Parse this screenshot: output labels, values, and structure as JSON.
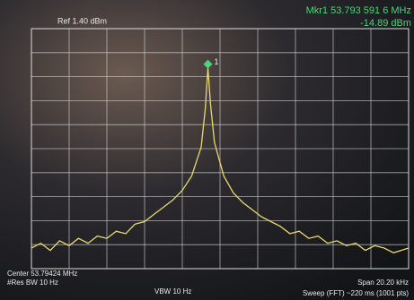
{
  "chart_data": {
    "type": "line",
    "marker_readout": "Mkr1 53.793 591 6 MHz",
    "marker_level": "-14.89 dBm",
    "marker_label": "1",
    "reference": "Ref 1.40 dBm",
    "center": "Center 53.79424 MHz",
    "res_bw": "#Res BW 10 Hz",
    "vbw": "VBW 10 Hz",
    "span": "Span 20.20 kHz",
    "sweep": "Sweep (FFT) ~220 ms (1001 pts)",
    "xlim": [
      53.78414,
      53.80434
    ],
    "ylim": [
      -98.6,
      1.4
    ],
    "grid": true,
    "series": [
      {
        "color": "#e8d870",
        "x": [
          53.78414,
          53.78464,
          53.78515,
          53.78565,
          53.78616,
          53.78666,
          53.78717,
          53.78767,
          53.78818,
          53.78868,
          53.78919,
          53.78969,
          53.7902,
          53.7907,
          53.79121,
          53.79171,
          53.79222,
          53.79272,
          53.79323,
          53.79345,
          53.79359,
          53.79373,
          53.79394,
          53.79444,
          53.79495,
          53.79545,
          53.79596,
          53.79646,
          53.79697,
          53.79747,
          53.79798,
          53.79848,
          53.79899,
          53.79949,
          53.8,
          53.8005,
          53.80101,
          53.80151,
          53.80202,
          53.80252,
          53.80303,
          53.80353,
          53.80434
        ],
        "values": [
          -90,
          -88,
          -91,
          -87,
          -89,
          -86,
          -88,
          -85,
          -86,
          -83,
          -84,
          -80,
          -79,
          -76,
          -73,
          -70,
          -66,
          -60,
          -48,
          -32,
          -14.89,
          -30,
          -46,
          -60,
          -67,
          -71,
          -74,
          -77,
          -79,
          -81,
          -84,
          -83,
          -86,
          -85,
          -88,
          -87,
          -89,
          -88,
          -91,
          -89,
          -90,
          -92,
          -90
        ]
      }
    ]
  }
}
